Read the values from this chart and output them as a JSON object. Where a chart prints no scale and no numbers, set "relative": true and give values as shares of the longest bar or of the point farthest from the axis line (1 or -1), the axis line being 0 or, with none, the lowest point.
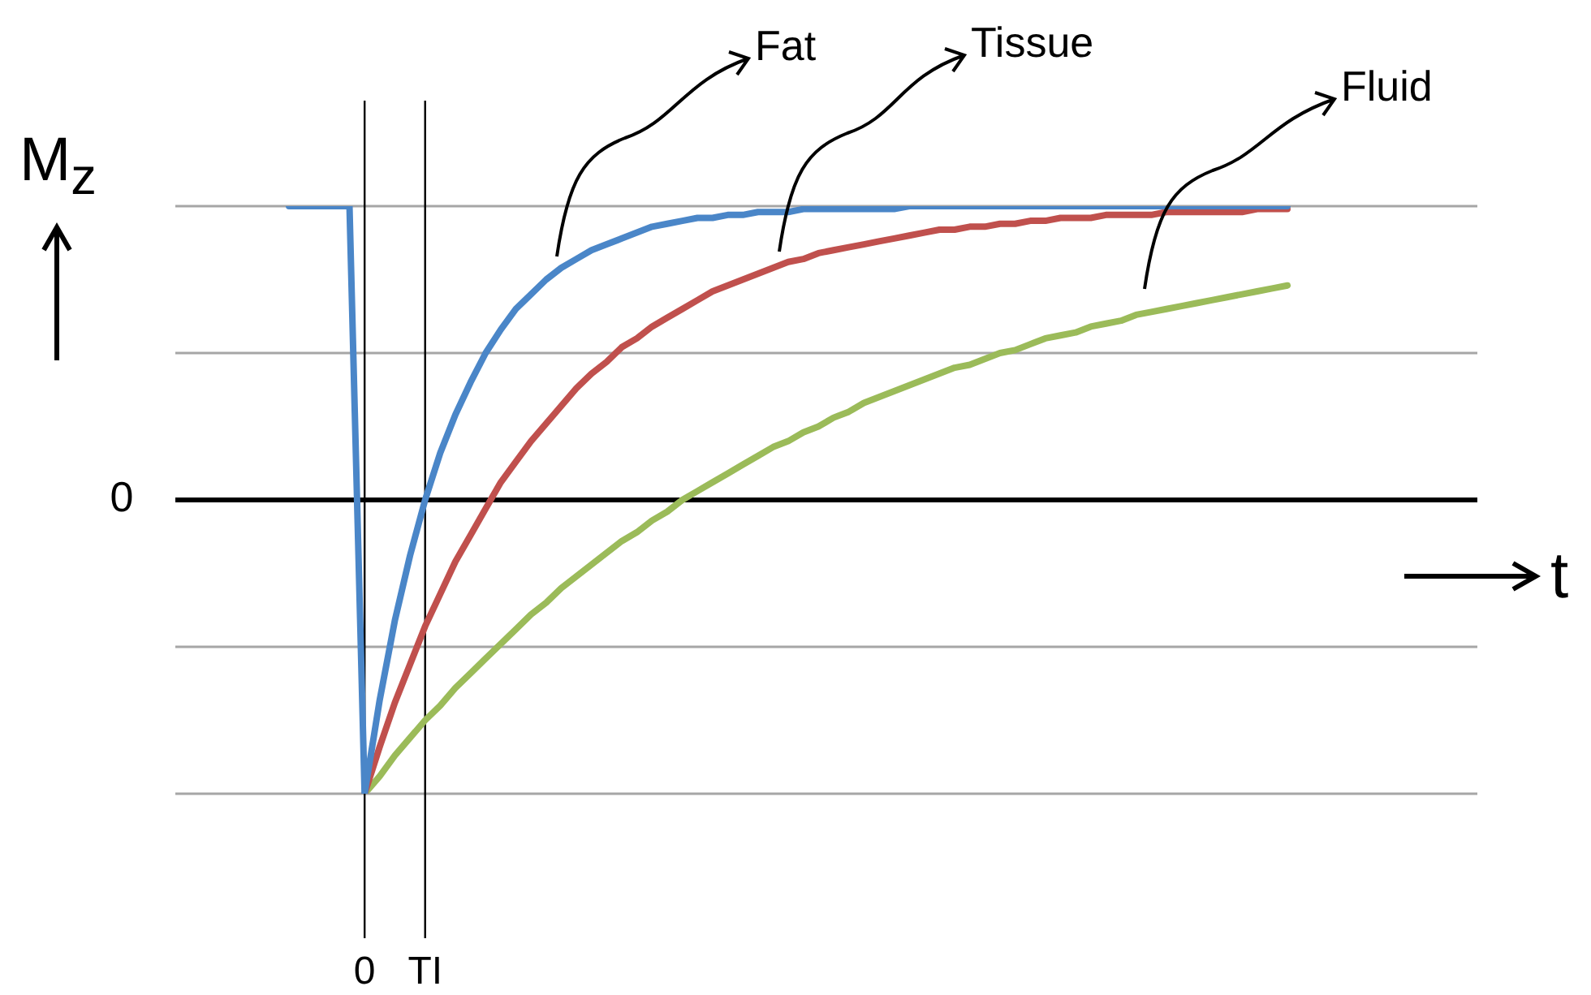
{
  "chart_data": {
    "type": "line",
    "relative": true,
    "xlabel": "t",
    "ylabel": "M$_{z}$",
    "marker": "none",
    "line_style": "solid",
    "categories": [
      null,
      null,
      null,
      null,
      null,
      "0",
      null,
      null,
      null,
      "TI",
      null,
      null,
      null,
      null,
      null,
      null,
      null,
      null,
      null,
      null,
      null,
      null,
      null,
      null,
      null,
      null,
      null,
      null,
      null,
      null,
      null,
      null,
      null,
      null,
      null,
      null,
      null,
      null,
      null,
      null,
      null,
      null,
      null,
      null,
      null,
      null,
      null,
      null,
      null,
      null,
      null,
      null,
      null,
      null,
      null,
      null,
      null,
      null,
      null,
      null,
      null,
      null,
      null,
      null,
      null,
      null,
      null
    ],
    "series": [
      {
        "color": "#4a86c8",
        "values": [
          1,
          1,
          1,
          1,
          1,
          -1,
          -0.68,
          -0.41,
          -0.19,
          0,
          0.16,
          0.29,
          0.4,
          0.5,
          0.58,
          0.65,
          0.7,
          0.75,
          0.79,
          0.82,
          0.85,
          0.87,
          0.89,
          0.91,
          0.93,
          0.94,
          0.95,
          0.96,
          0.96,
          0.97,
          0.97,
          0.98,
          0.98,
          0.98,
          0.99,
          0.99,
          0.99,
          0.99,
          0.99,
          0.99,
          0.99,
          1,
          1,
          1,
          1,
          1,
          1,
          1,
          1,
          1,
          1,
          1,
          1,
          1,
          1,
          1,
          1,
          1,
          1,
          1,
          1,
          1,
          1,
          1,
          1,
          1,
          1
        ]
      },
      {
        "color": "#c0504d",
        "values": [
          null,
          null,
          null,
          null,
          null,
          -1,
          -0.84,
          -0.69,
          -0.56,
          -0.43,
          -0.32,
          -0.21,
          -0.12,
          -0.03,
          0.06,
          0.13,
          0.2,
          0.26,
          0.32,
          0.38,
          0.43,
          0.47,
          0.52,
          0.55,
          0.59,
          0.62,
          0.65,
          0.68,
          0.71,
          0.73,
          0.75,
          0.77,
          0.79,
          0.81,
          0.82,
          0.84,
          0.85,
          0.86,
          0.87,
          0.88,
          0.89,
          0.9,
          0.91,
          0.92,
          0.92,
          0.93,
          0.93,
          0.94,
          0.94,
          0.95,
          0.95,
          0.96,
          0.96,
          0.96,
          0.97,
          0.97,
          0.97,
          0.97,
          0.98,
          0.98,
          0.98,
          0.98,
          0.98,
          0.98,
          0.99,
          0.99,
          0.99
        ]
      },
      {
        "color": "#9bbb59",
        "values": [
          null,
          null,
          null,
          null,
          null,
          -1,
          -0.94,
          -0.87,
          -0.81,
          -0.75,
          -0.7,
          -0.64,
          -0.59,
          -0.54,
          -0.49,
          -0.44,
          -0.39,
          -0.35,
          -0.3,
          -0.26,
          -0.22,
          -0.18,
          -0.14,
          -0.11,
          -0.07,
          -0.04,
          0,
          0.03,
          0.06,
          0.09,
          0.12,
          0.15,
          0.18,
          0.2,
          0.23,
          0.25,
          0.28,
          0.3,
          0.33,
          0.35,
          0.37,
          0.39,
          0.41,
          0.43,
          0.45,
          0.46,
          0.48,
          0.5,
          0.51,
          0.53,
          0.55,
          0.56,
          0.57,
          0.59,
          0.6,
          0.61,
          0.63,
          0.64,
          0.65,
          0.66,
          0.67,
          0.68,
          0.69,
          0.7,
          0.71,
          0.72,
          0.73
        ]
      }
    ],
    "ref_lines": [
      {
        "axis": "y",
        "value": 1,
        "color": "#a6a6a6"
      },
      {
        "axis": "y",
        "value": 0.5,
        "color": "#a6a6a6"
      },
      {
        "axis": "y",
        "value": -0.5,
        "color": "#a6a6a6"
      },
      {
        "axis": "y",
        "value": -1,
        "color": "#a6a6a6"
      },
      {
        "axis": "y",
        "value": 0,
        "label": "0",
        "color": "#000000"
      },
      {
        "axis": "x",
        "value": "0",
        "color": "#000000"
      },
      {
        "axis": "x",
        "value": "TI",
        "color": "#000000"
      }
    ],
    "annotations": [
      "Fat",
      "Tissue",
      "Fluid"
    ]
  }
}
